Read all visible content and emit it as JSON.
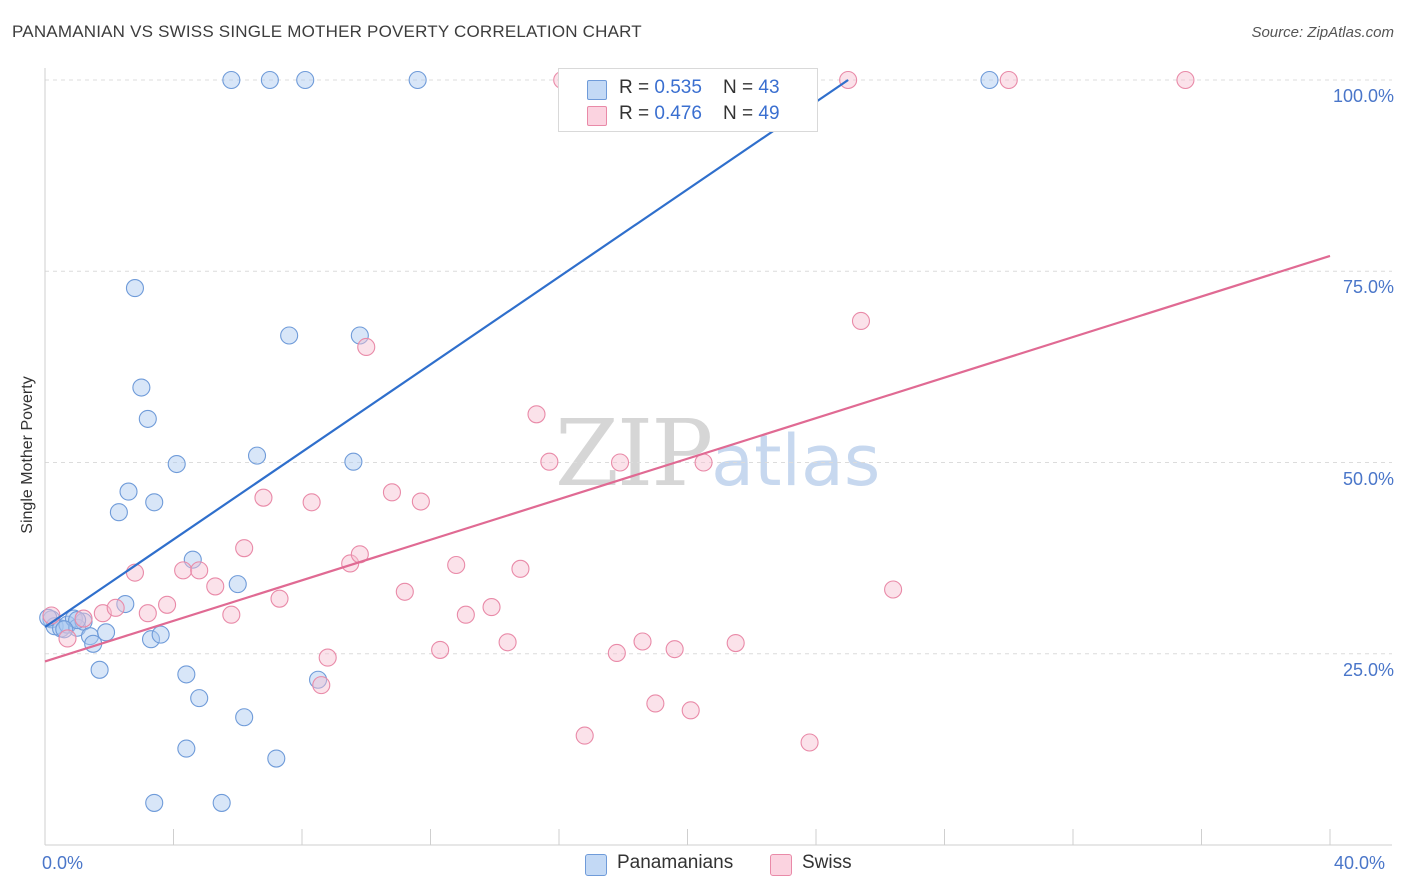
{
  "title": "PANAMANIAN VS SWISS SINGLE MOTHER POVERTY CORRELATION CHART",
  "source": "Source: ZipAtlas.com",
  "watermark": {
    "zip": "ZIP",
    "atlas": "atlas"
  },
  "legend_stats": [
    {
      "r_label": "R = ",
      "r_value": "0.535",
      "n_label": "N = ",
      "n_value": "43",
      "color": "#a9c8f0",
      "stroke": "#6f9bd9"
    },
    {
      "r_label": "R = ",
      "r_value": "0.476",
      "n_label": "N = ",
      "n_value": "49",
      "color": "#f7bfd0",
      "stroke": "#e98aa8"
    }
  ],
  "chart_data": {
    "type": "scatter",
    "title": "PANAMANIAN VS SWISS SINGLE MOTHER POVERTY CORRELATION CHART",
    "xlabel": "",
    "ylabel": "Single Mother Poverty",
    "xlim": [
      0,
      40
    ],
    "ylim": [
      0,
      102
    ],
    "x_tick_labels": [
      "0.0%",
      "40.0%"
    ],
    "y_tick_labels": [
      "25.0%",
      "50.0%",
      "75.0%",
      "100.0%"
    ],
    "y_ticks": [
      25,
      50,
      75,
      100
    ],
    "legend_position": "bottom-center",
    "series": [
      {
        "name": "Panamanians",
        "color": "#a9c8f0",
        "stroke": "#6f9bd9",
        "line_color": "#2f6fcc",
        "trend": {
          "x": [
            0,
            25.0
          ],
          "y": [
            28.5,
            100
          ]
        },
        "points": [
          [
            0.2,
            29.5
          ],
          [
            0.3,
            28.6
          ],
          [
            0.5,
            28.3
          ],
          [
            0.7,
            28.8
          ],
          [
            0.9,
            29.6
          ],
          [
            1.0,
            28.4
          ],
          [
            1.2,
            29.2
          ],
          [
            1.4,
            27.3
          ],
          [
            1.5,
            26.3
          ],
          [
            1.7,
            22.9
          ],
          [
            1.9,
            27.8
          ],
          [
            2.3,
            43.5
          ],
          [
            2.5,
            31.5
          ],
          [
            2.6,
            46.2
          ],
          [
            2.8,
            72.8
          ],
          [
            3.0,
            59.8
          ],
          [
            3.2,
            55.7
          ],
          [
            3.3,
            26.9
          ],
          [
            3.4,
            44.8
          ],
          [
            3.4,
            5.5
          ],
          [
            3.6,
            27.5
          ],
          [
            4.1,
            49.8
          ],
          [
            4.4,
            22.3
          ],
          [
            4.4,
            12.6
          ],
          [
            4.6,
            37.3
          ],
          [
            4.8,
            19.2
          ],
          [
            5.5,
            5.5
          ],
          [
            5.8,
            100
          ],
          [
            6.0,
            34.1
          ],
          [
            6.2,
            16.7
          ],
          [
            6.6,
            50.9
          ],
          [
            7.0,
            100
          ],
          [
            7.2,
            11.3
          ],
          [
            7.6,
            66.6
          ],
          [
            8.1,
            100
          ],
          [
            8.5,
            21.6
          ],
          [
            9.6,
            50.1
          ],
          [
            9.8,
            66.6
          ],
          [
            11.6,
            100
          ],
          [
            29.4,
            100
          ],
          [
            1.0,
            29.4
          ],
          [
            0.6,
            28.2
          ],
          [
            0.1,
            29.7
          ]
        ]
      },
      {
        "name": "Swiss",
        "color": "#f7bfd0",
        "stroke": "#e98aa8",
        "line_color": "#e06a93",
        "trend": {
          "x": [
            0,
            40
          ],
          "y": [
            24.0,
            77.0
          ]
        },
        "points": [
          [
            0.2,
            30.0
          ],
          [
            0.7,
            27.0
          ],
          [
            1.2,
            29.6
          ],
          [
            1.8,
            30.3
          ],
          [
            2.2,
            31.0
          ],
          [
            2.8,
            35.6
          ],
          [
            3.2,
            30.3
          ],
          [
            3.8,
            31.4
          ],
          [
            4.3,
            35.9
          ],
          [
            4.8,
            35.9
          ],
          [
            5.3,
            33.8
          ],
          [
            5.8,
            30.1
          ],
          [
            6.2,
            38.8
          ],
          [
            6.8,
            45.4
          ],
          [
            7.3,
            32.2
          ],
          [
            8.3,
            44.8
          ],
          [
            8.6,
            20.9
          ],
          [
            8.8,
            24.5
          ],
          [
            9.5,
            36.8
          ],
          [
            9.8,
            38.0
          ],
          [
            10.0,
            65.1
          ],
          [
            10.8,
            46.1
          ],
          [
            11.2,
            33.1
          ],
          [
            11.7,
            44.9
          ],
          [
            12.3,
            25.5
          ],
          [
            12.8,
            36.6
          ],
          [
            13.1,
            30.1
          ],
          [
            13.9,
            31.1
          ],
          [
            14.4,
            26.5
          ],
          [
            14.8,
            36.1
          ],
          [
            15.3,
            56.3
          ],
          [
            15.7,
            50.1
          ],
          [
            16.1,
            100
          ],
          [
            16.8,
            14.3
          ],
          [
            17.8,
            25.1
          ],
          [
            17.9,
            50.0
          ],
          [
            18.6,
            26.6
          ],
          [
            19.0,
            18.5
          ],
          [
            19.6,
            25.6
          ],
          [
            20.1,
            17.6
          ],
          [
            20.5,
            50.0
          ],
          [
            21.5,
            26.4
          ],
          [
            22.1,
            100
          ],
          [
            23.8,
            13.4
          ],
          [
            25.0,
            100
          ],
          [
            25.4,
            68.5
          ],
          [
            26.4,
            33.4
          ],
          [
            30.0,
            100
          ],
          [
            35.5,
            100
          ]
        ]
      }
    ]
  },
  "bottom_legend": [
    {
      "label": "Panamanians",
      "color": "#a9c8f0",
      "stroke": "#6f9bd9"
    },
    {
      "label": "Swiss",
      "color": "#f7bfd0",
      "stroke": "#e98aa8"
    }
  ]
}
